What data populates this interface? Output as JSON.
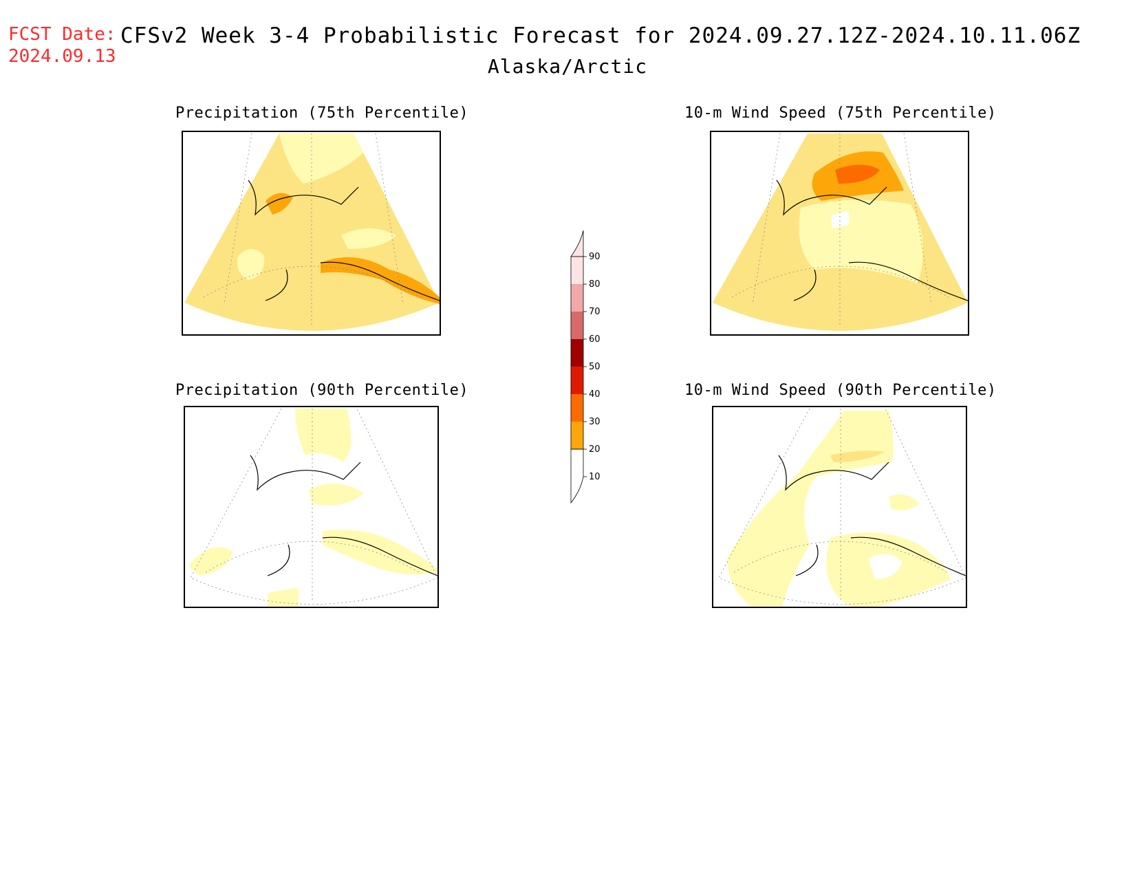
{
  "header": {
    "fcst_label": "FCST Date:",
    "fcst_date": "2024.09.13",
    "title": "CFSv2 Week 3-4 Probabilistic Forecast for 2024.09.27.12Z-2024.10.11.06Z",
    "region": "Alaska/Arctic"
  },
  "panels": [
    {
      "id": "precip-75",
      "title": "Precipitation (75th Percentile)"
    },
    {
      "id": "wind-75",
      "title": "10-m Wind Speed (75th Percentile)"
    },
    {
      "id": "precip-90",
      "title": "Precipitation (90th Percentile)"
    },
    {
      "id": "wind-90",
      "title": "10-m Wind Speed (90th Percentile)"
    }
  ],
  "colorbar": {
    "levels": [
      "10",
      "20",
      "30",
      "40",
      "50",
      "60",
      "70",
      "80",
      "90"
    ],
    "colors": [
      "#fffbb3",
      "#fde482",
      "#fca60a",
      "#fc6a00",
      "#e01a00",
      "#a00000",
      "#d86a6a",
      "#f0a8a8",
      "#fce4e4"
    ]
  }
}
